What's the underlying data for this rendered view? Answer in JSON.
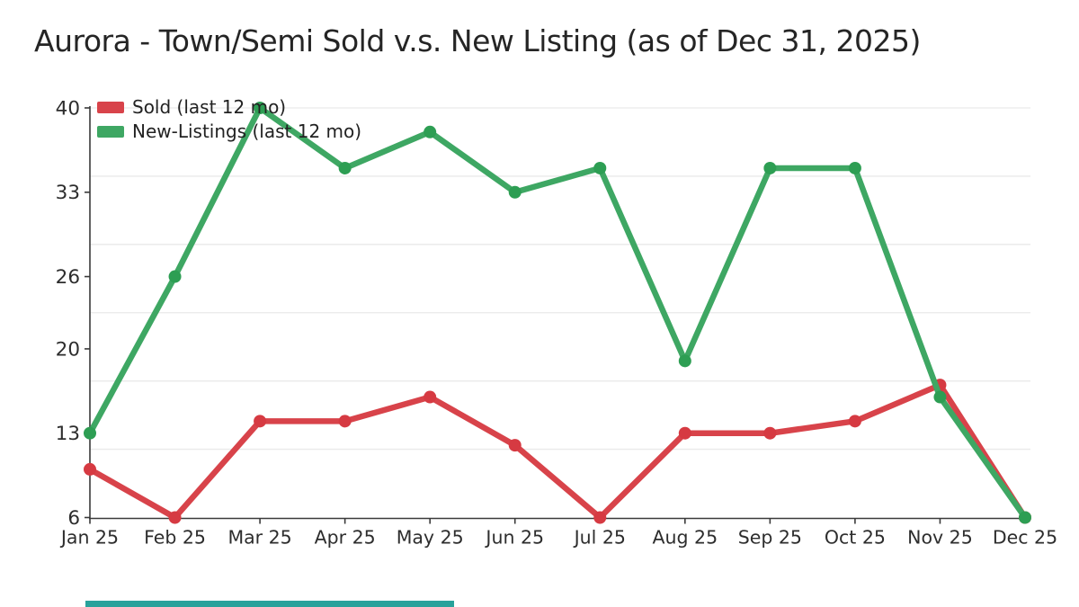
{
  "page": {
    "title": "Aurora - Town/Semi Sold v.s. New Listing (as of Dec 31, 2025)"
  },
  "chart_data": {
    "type": "line",
    "title": "Aurora - Town/Semi Sold v.s. New Listing (as of Dec 31, 2025)",
    "categories": [
      "Jan 25",
      "Feb 25",
      "Mar 25",
      "Apr 25",
      "May 25",
      "Jun 25",
      "Jul 25",
      "Aug 25",
      "Sep 25",
      "Oct 25",
      "Nov 25",
      "Dec 25"
    ],
    "series": [
      {
        "name": "Sold (last 12 mo)",
        "color": "#d8434a",
        "marker_color": "#d63a42",
        "values": [
          10,
          6,
          14,
          14,
          16,
          12,
          6,
          13,
          13,
          14,
          17,
          6
        ]
      },
      {
        "name": "New-Listings (last 12 mo)",
        "color": "#3ea763",
        "marker_color": "#2d9e53",
        "values": [
          13,
          26,
          40,
          35,
          38,
          33,
          35,
          19,
          35,
          35,
          16,
          6
        ]
      }
    ],
    "ylim": [
      6,
      40
    ],
    "yticks": [
      6,
      13,
      20,
      26,
      33,
      40
    ],
    "xlabel": "",
    "ylabel": "",
    "grid": "horizontal-light",
    "legend_position": "top-left-inside"
  },
  "decor": {
    "bottom_bar_color": "#28a29b"
  }
}
